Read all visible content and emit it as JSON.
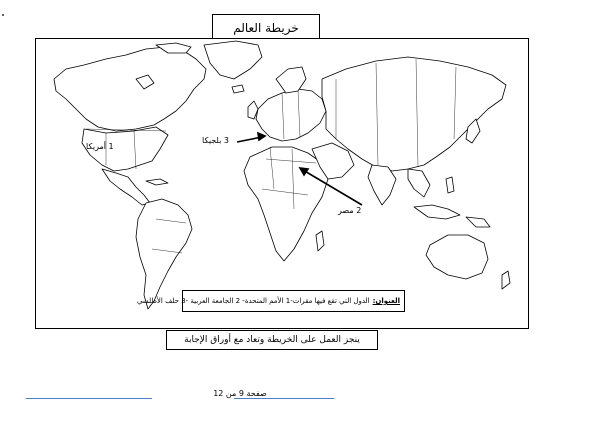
{
  "page": {
    "title": "خريطة العالم",
    "instruction": "ينجز العمل على الخريطة وتعاد مع أوراق الإجابة",
    "page_number": "صفحة 9 من 12"
  },
  "legend": {
    "label": "العنوان:",
    "text": "الدول التي تقع فيها مقرات-1 الأمم المتحدة- 2 الجامعة العربية -3 حلف الأطلسي"
  },
  "map_labels": {
    "usa": "1 أمريكا",
    "belgium": "3 بلجيكا",
    "egypt": "2 مصر"
  },
  "colors": {
    "rule": "#4a80c8",
    "stroke": "#000000"
  }
}
